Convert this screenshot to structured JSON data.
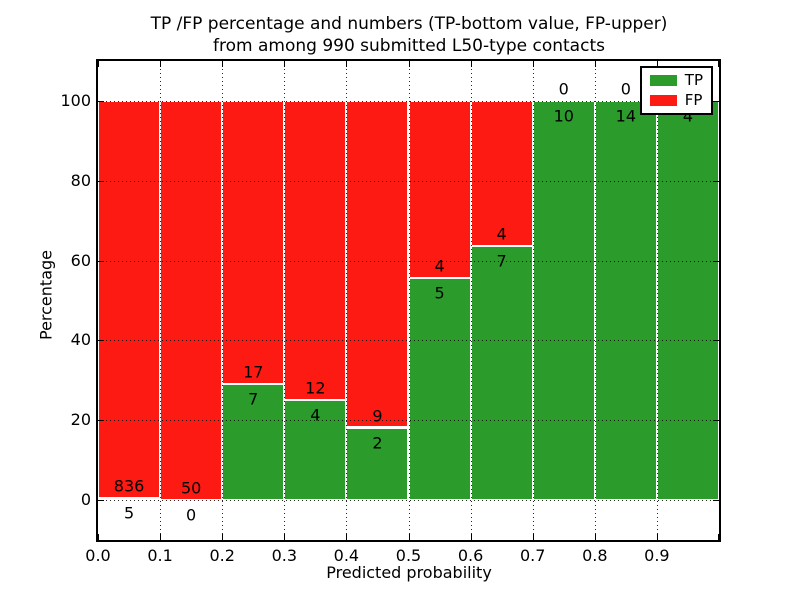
{
  "figure": {
    "title_line1": "TP /FP percentage and numbers (TP-bottom value, FP-upper)",
    "title_line2": "from among 990 submitted L50-type contacts",
    "xlabel": "Predicted probability",
    "ylabel": "Percentage"
  },
  "legend": {
    "items": [
      {
        "label": "TP",
        "color": "#2b9b2b"
      },
      {
        "label": "FP",
        "color": "#fc1a13"
      }
    ]
  },
  "chart_data": {
    "type": "bar",
    "stacked": true,
    "normalized_to_percent": true,
    "title": "TP /FP percentage and numbers (TP-bottom value, FP-upper) from among 990 submitted L50-type contacts",
    "xlabel": "Predicted probability",
    "ylabel": "Percentage",
    "xlim": [
      0.0,
      1.0
    ],
    "ylim": [
      -10,
      110
    ],
    "bin_width": 0.1,
    "xticks": [
      "0.0",
      "0.1",
      "0.2",
      "0.3",
      "0.4",
      "0.5",
      "0.6",
      "0.7",
      "0.8",
      "0.9"
    ],
    "yticks": [
      0,
      20,
      40,
      60,
      80,
      100
    ],
    "grid": "dotted",
    "legend_position": "upper right",
    "total_contacts": 990,
    "series": [
      {
        "name": "TP",
        "color": "#2b9b2b",
        "position": "bottom"
      },
      {
        "name": "FP",
        "color": "#fc1a13",
        "position": "top"
      }
    ],
    "bins": [
      {
        "range": [
          0.0,
          0.1
        ],
        "tp": 5,
        "fp": 836
      },
      {
        "range": [
          0.1,
          0.2
        ],
        "tp": 0,
        "fp": 50
      },
      {
        "range": [
          0.2,
          0.3
        ],
        "tp": 7,
        "fp": 17
      },
      {
        "range": [
          0.3,
          0.4
        ],
        "tp": 4,
        "fp": 12
      },
      {
        "range": [
          0.4,
          0.5
        ],
        "tp": 2,
        "fp": 9
      },
      {
        "range": [
          0.5,
          0.6
        ],
        "tp": 5,
        "fp": 4
      },
      {
        "range": [
          0.6,
          0.7
        ],
        "tp": 7,
        "fp": 4
      },
      {
        "range": [
          0.7,
          0.8
        ],
        "tp": 10,
        "fp": 0
      },
      {
        "range": [
          0.8,
          0.9
        ],
        "tp": 14,
        "fp": 0
      },
      {
        "range": [
          0.9,
          1.0
        ],
        "tp": 4,
        "fp": 0
      }
    ]
  }
}
